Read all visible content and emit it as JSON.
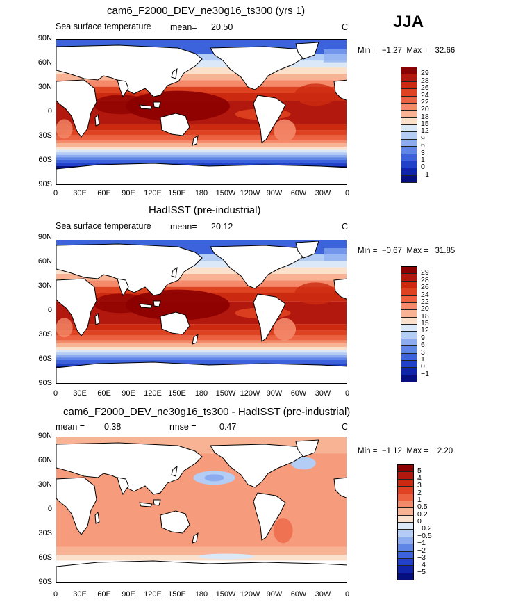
{
  "season": "JJA",
  "panels": [
    {
      "title": "cam6_F2000_DEV_ne30g16_ts300 (yrs 1)",
      "subtitle": "Sea surface temperature",
      "mean_label": "mean=",
      "mean_value": "20.50",
      "rmse_label": "",
      "rmse_value": "",
      "units": "C",
      "min_max": "Min =  −1.27  Max =   32.66",
      "field": "sst_model"
    },
    {
      "title": "HadISST (pre-industrial)",
      "subtitle": "Sea surface temperature",
      "mean_label": "mean=",
      "mean_value": "20.12",
      "rmse_label": "",
      "rmse_value": "",
      "units": "C",
      "min_max": "Min =  −0.67  Max =   31.85",
      "field": "sst_obs"
    },
    {
      "title": "cam6_F2000_DEV_ne30g16_ts300 - HadISST (pre-industrial)",
      "subtitle": "",
      "mean_label": "mean =",
      "mean_value": "0.38",
      "rmse_label": "rmse =",
      "rmse_value": "0.47",
      "units": "C",
      "min_max": "Min =  −1.12  Max =    2.20",
      "field": "diff"
    }
  ],
  "lat_ticks": [
    "90N",
    "60N",
    "30N",
    "0",
    "30S",
    "60S",
    "90S"
  ],
  "lon_ticks": [
    "0",
    "30E",
    "60E",
    "90E",
    "120E",
    "150E",
    "180",
    "150W",
    "120W",
    "90W",
    "60W",
    "30W",
    "0"
  ],
  "colorbars": {
    "sst": {
      "levels": [
        "29",
        "28",
        "26",
        "24",
        "22",
        "20",
        "18",
        "15",
        "12",
        "9",
        "6",
        "3",
        "1",
        "0",
        "−1"
      ],
      "colors": [
        "#8b0000",
        "#b2180e",
        "#cc2a10",
        "#de4220",
        "#ec6140",
        "#f48a6a",
        "#f8b294",
        "#fbe0cc",
        "#dbe8f8",
        "#b4cdf4",
        "#8cacef",
        "#5f86e6",
        "#3c63dc",
        "#2142c8",
        "#0f24a8",
        "#050f80"
      ]
    },
    "diff": {
      "levels": [
        "5",
        "4",
        "3",
        "2",
        "1",
        "0.5",
        "0.2",
        "0",
        "−0.2",
        "−0.5",
        "−1",
        "−2",
        "−3",
        "−4",
        "−5"
      ],
      "colors": [
        "#8b0000",
        "#b2180e",
        "#cc2a10",
        "#de4220",
        "#ec6140",
        "#f48a6a",
        "#f8b294",
        "#fbe0cc",
        "#dbe8f8",
        "#b4cdf4",
        "#8cacef",
        "#5f86e6",
        "#3c63dc",
        "#2142c8",
        "#0f24a8",
        "#050f80"
      ]
    }
  },
  "chart_data": [
    {
      "type": "heatmap",
      "title": "cam6_F2000_DEV_ne30g16_ts300 (yrs 1)",
      "subtitle": "Sea surface temperature",
      "units": "C",
      "mean": 20.5,
      "min": -1.27,
      "max": 32.66,
      "x_ticks": [
        "0",
        "30E",
        "60E",
        "90E",
        "120E",
        "150E",
        "180",
        "150W",
        "120W",
        "90W",
        "60W",
        "30W",
        "0"
      ],
      "y_ticks": [
        "90N",
        "60N",
        "30N",
        "0",
        "30S",
        "60S",
        "90S"
      ],
      "levels": [
        -1,
        0,
        1,
        3,
        6,
        9,
        12,
        15,
        18,
        20,
        22,
        24,
        26,
        28,
        29
      ]
    },
    {
      "type": "heatmap",
      "title": "HadISST (pre-industrial)",
      "subtitle": "Sea surface temperature",
      "units": "C",
      "mean": 20.12,
      "min": -0.67,
      "max": 31.85,
      "x_ticks": [
        "0",
        "30E",
        "60E",
        "90E",
        "120E",
        "150E",
        "180",
        "150W",
        "120W",
        "90W",
        "60W",
        "30W",
        "0"
      ],
      "y_ticks": [
        "90N",
        "60N",
        "30N",
        "0",
        "30S",
        "60S",
        "90S"
      ],
      "levels": [
        -1,
        0,
        1,
        3,
        6,
        9,
        12,
        15,
        18,
        20,
        22,
        24,
        26,
        28,
        29
      ]
    },
    {
      "type": "heatmap",
      "title": "cam6_F2000_DEV_ne30g16_ts300 - HadISST (pre-industrial)",
      "units": "C",
      "mean": 0.38,
      "rmse": 0.47,
      "min": -1.12,
      "max": 2.2,
      "x_ticks": [
        "0",
        "30E",
        "60E",
        "90E",
        "120E",
        "150E",
        "180",
        "150W",
        "120W",
        "90W",
        "60W",
        "30W",
        "0"
      ],
      "y_ticks": [
        "90N",
        "60N",
        "30N",
        "0",
        "30S",
        "60S",
        "90S"
      ],
      "levels": [
        -5,
        -4,
        -3,
        -2,
        -1,
        -0.5,
        -0.2,
        0,
        0.2,
        0.5,
        1,
        2,
        3,
        4,
        5
      ]
    }
  ]
}
